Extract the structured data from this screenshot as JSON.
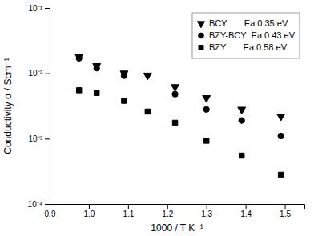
{
  "chart_data": {
    "type": "scatter",
    "xlabel": "1000 / T K⁻¹",
    "ylabel": "Conductivity σ / Scm⁻¹",
    "series": [
      {
        "name": "BCY       Ea 0.35 eV",
        "color": "#000000",
        "marker": "triangle-down",
        "x": [
          0.975,
          1.02,
          1.09,
          1.15,
          1.22,
          1.3,
          1.39,
          1.49
        ],
        "values": [
          0.018,
          0.013,
          0.01,
          0.0093,
          0.0062,
          0.0042,
          0.0028,
          0.0022
        ]
      },
      {
        "name": "BZY-BCY  Ea 0.43 eV",
        "color": "#000000",
        "marker": "circle",
        "x": [
          0.975,
          1.02,
          1.09,
          1.22,
          1.3,
          1.39,
          1.49
        ],
        "values": [
          0.017,
          0.012,
          0.0092,
          0.0048,
          0.0028,
          0.0019,
          0.0011
        ]
      },
      {
        "name": "BZY       Ea 0.58 eV",
        "color": "#000000",
        "marker": "square",
        "x": [
          0.975,
          1.02,
          1.09,
          1.15,
          1.22,
          1.3,
          1.39,
          1.49
        ],
        "values": [
          0.0055,
          0.005,
          0.0038,
          0.0026,
          0.00175,
          0.00093,
          0.00055,
          0.00028
        ]
      }
    ],
    "xlim": [
      0.9,
      1.55
    ],
    "ylim": [
      0.0001,
      0.1
    ],
    "xticks": [
      0.9,
      {
        "value": 1,
        "label": "1.0"
      },
      1.1,
      1.2,
      1.3,
      1.4,
      1.5
    ],
    "yticks": [
      {
        "value": 0.0001,
        "label": "10⁻⁴"
      },
      {
        "value": 0.001,
        "label": "10⁻³"
      },
      {
        "value": 0.01,
        "label": "10⁻²"
      },
      {
        "value": 0.1,
        "label": "10⁻¹"
      }
    ],
    "log": "y",
    "grid": false,
    "legend": "upper right"
  }
}
